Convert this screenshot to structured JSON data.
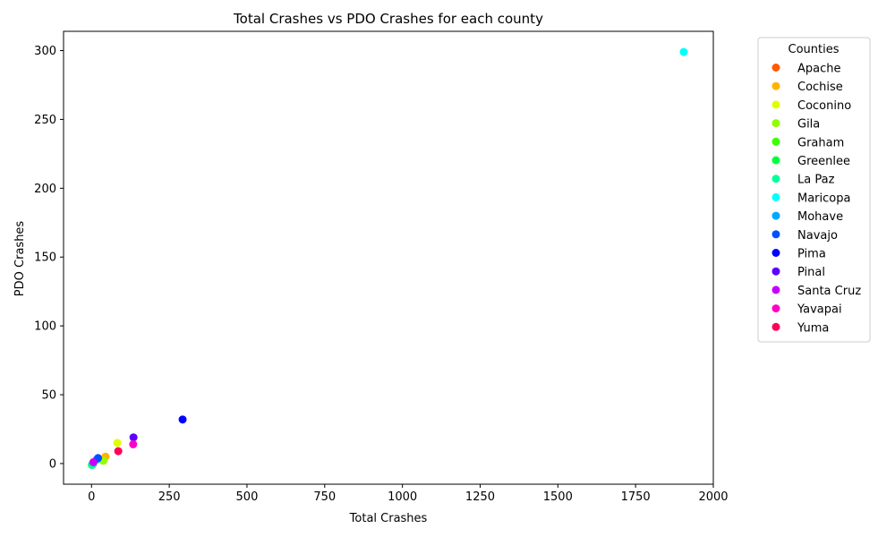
{
  "chart_data": {
    "type": "scatter",
    "title": "Total Crashes vs PDO Crashes for each county",
    "xlabel": "Total Crashes",
    "ylabel": "PDO Crashes",
    "xlim": [
      -90,
      2000
    ],
    "ylim": [
      -15,
      314
    ],
    "xticks": [
      0,
      250,
      500,
      750,
      1000,
      1250,
      1500,
      1750,
      2000
    ],
    "yticks": [
      0,
      50,
      100,
      150,
      200,
      250,
      300
    ],
    "grid": false,
    "legend": {
      "title": "Counties",
      "placement": "outside-right"
    },
    "series": [
      {
        "name": "Apache",
        "color": "#ff5a00",
        "points": [
          [
            4,
            0
          ]
        ]
      },
      {
        "name": "Cochise",
        "color": "#ffb300",
        "points": [
          [
            45,
            5
          ]
        ]
      },
      {
        "name": "Coconino",
        "color": "#e0ff00",
        "points": [
          [
            83,
            15
          ]
        ]
      },
      {
        "name": "Gila",
        "color": "#90ff00",
        "points": [
          [
            38,
            2
          ]
        ]
      },
      {
        "name": "Graham",
        "color": "#3cff00",
        "points": [
          [
            6,
            0
          ]
        ]
      },
      {
        "name": "Greenlee",
        "color": "#00ff3c",
        "points": [
          [
            1,
            -1
          ]
        ]
      },
      {
        "name": "La Paz",
        "color": "#00ff9a",
        "points": [
          [
            3,
            -1
          ]
        ]
      },
      {
        "name": "Maricopa",
        "color": "#00ffff",
        "points": [
          [
            1905,
            299
          ]
        ]
      },
      {
        "name": "Mohave",
        "color": "#00a8ff",
        "points": [
          [
            17,
            3
          ]
        ]
      },
      {
        "name": "Navajo",
        "color": "#0050ff",
        "points": [
          [
            21,
            4
          ]
        ]
      },
      {
        "name": "Pima",
        "color": "#0000ff",
        "points": [
          [
            293,
            32
          ]
        ]
      },
      {
        "name": "Pinal",
        "color": "#5a00ff",
        "points": [
          [
            135,
            19
          ]
        ]
      },
      {
        "name": "Santa Cruz",
        "color": "#c800ff",
        "points": [
          [
            6,
            1
          ]
        ]
      },
      {
        "name": "Yavapai",
        "color": "#ff00c8",
        "points": [
          [
            134,
            14
          ]
        ]
      },
      {
        "name": "Yuma",
        "color": "#ff005a",
        "points": [
          [
            86,
            9
          ]
        ]
      }
    ]
  }
}
